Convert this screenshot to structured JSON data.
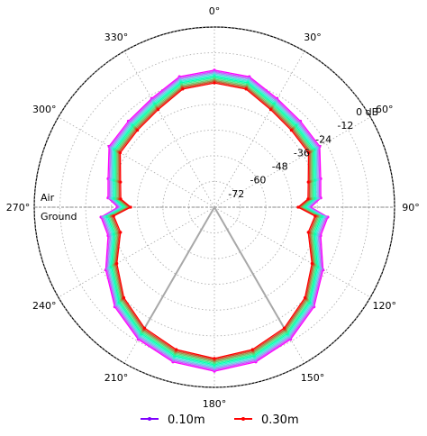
{
  "chart_data": {
    "type": "polar-line",
    "title": "",
    "angle_unit": "deg",
    "angle_ticks": [
      "0°",
      "30°",
      "60°",
      "90°",
      "120°",
      "150°",
      "180°",
      "210°",
      "240°",
      "270°",
      "300°",
      "330°"
    ],
    "radial_unit": "dB",
    "radial_range": [
      -84,
      0
    ],
    "radial_ticks": [
      "0 dB",
      "-12",
      "-24",
      "-36",
      "-48",
      "-60",
      "-72"
    ],
    "radial_tick_values": [
      0,
      -12,
      -24,
      -36,
      -48,
      -60,
      -72
    ],
    "grid": true,
    "boundary_labels": {
      "upper": "Air",
      "lower": "Ground"
    },
    "reference_lines_deg": [
      150,
      210
    ],
    "colormap": "rainbow",
    "legend": {
      "placement": "bottom",
      "entries": [
        {
          "label": "0.10m",
          "color": "#7f00ff"
        },
        {
          "label": "0.30m",
          "color": "#ff0000"
        }
      ]
    },
    "angles_deg": [
      0,
      15,
      30,
      45,
      60,
      75,
      85,
      90,
      95,
      105,
      120,
      135,
      150,
      165,
      180,
      195,
      210,
      225,
      240,
      255,
      265,
      270,
      275,
      285,
      300,
      315,
      330,
      345
    ],
    "series_count": 11,
    "series_profile": [
      -26.1,
      -27,
      -31.5,
      -33.3,
      -33.3,
      -38.7,
      -40.2,
      -45,
      -36.9,
      -38.7,
      -31.5,
      -24.3,
      -18.9,
      -15.3,
      -13.5,
      -15.3,
      -18.9,
      -24.3,
      -31.5,
      -38.7,
      -36.9,
      -45,
      -40.2,
      -38.7,
      -33.3,
      -33.3,
      -31.5,
      -27
    ],
    "series_spread_db": 6
  }
}
